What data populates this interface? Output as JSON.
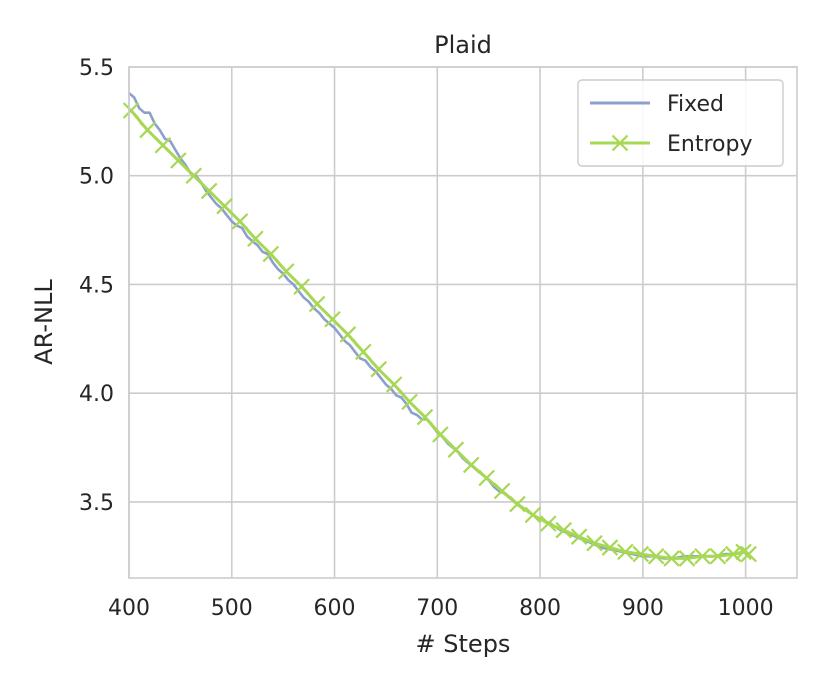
{
  "chart_data": {
    "type": "line",
    "title": "Plaid",
    "xlabel": "# Steps",
    "ylabel": "AR-NLL",
    "xlim": [
      400,
      1050
    ],
    "ylim": [
      3.15,
      5.5
    ],
    "xticks": [
      400,
      500,
      600,
      700,
      800,
      900,
      1000
    ],
    "yticks": [
      3.5,
      4.0,
      4.5,
      5.0,
      5.5
    ],
    "xtick_labels": [
      "400",
      "500",
      "600",
      "700",
      "800",
      "900",
      "1000"
    ],
    "ytick_labels": [
      "3.5",
      "4.0",
      "4.5",
      "5.0",
      "5.5"
    ],
    "grid": true,
    "legend_position": "top-right",
    "series": [
      {
        "name": "Fixed",
        "color": "#8da0cb",
        "marker": "none",
        "x": [
          400,
          405,
          410,
          415,
          420,
          425,
          430,
          435,
          440,
          445,
          450,
          455,
          460,
          465,
          470,
          475,
          480,
          485,
          490,
          495,
          500,
          505,
          510,
          515,
          520,
          525,
          530,
          535,
          540,
          545,
          550,
          555,
          560,
          565,
          570,
          575,
          580,
          585,
          590,
          595,
          600,
          605,
          610,
          615,
          620,
          625,
          630,
          635,
          640,
          645,
          650,
          655,
          660,
          665,
          670,
          675,
          680,
          685,
          690,
          695,
          700,
          705,
          710,
          715,
          720,
          725,
          730,
          735,
          740,
          745,
          750,
          755,
          760,
          765,
          770,
          775,
          780,
          790,
          800,
          810,
          820,
          830,
          840,
          850,
          860,
          870,
          880,
          890,
          900,
          910,
          920,
          930,
          940,
          950,
          960,
          970,
          980,
          990,
          1000
        ],
        "values": [
          5.38,
          5.36,
          5.31,
          5.29,
          5.29,
          5.24,
          5.21,
          5.17,
          5.16,
          5.12,
          5.08,
          5.05,
          5.01,
          5.0,
          4.97,
          4.93,
          4.9,
          4.87,
          4.85,
          4.82,
          4.79,
          4.77,
          4.76,
          4.72,
          4.7,
          4.68,
          4.65,
          4.64,
          4.6,
          4.57,
          4.55,
          4.52,
          4.5,
          4.47,
          4.44,
          4.42,
          4.39,
          4.37,
          4.34,
          4.32,
          4.3,
          4.27,
          4.24,
          4.22,
          4.19,
          4.16,
          4.15,
          4.12,
          4.1,
          4.07,
          4.04,
          4.02,
          3.99,
          3.98,
          3.95,
          3.91,
          3.9,
          3.88,
          3.88,
          3.85,
          3.82,
          3.8,
          3.77,
          3.75,
          3.73,
          3.7,
          3.68,
          3.66,
          3.64,
          3.62,
          3.6,
          3.57,
          3.55,
          3.54,
          3.52,
          3.5,
          3.48,
          3.45,
          3.42,
          3.4,
          3.37,
          3.35,
          3.33,
          3.31,
          3.29,
          3.28,
          3.27,
          3.26,
          3.25,
          3.25,
          3.24,
          3.24,
          3.25,
          3.25,
          3.25,
          3.25,
          3.26,
          3.26,
          3.27
        ]
      },
      {
        "name": "Entropy",
        "color": "#a6d854",
        "marker": "x",
        "x": [
          402,
          418,
          433,
          448,
          463,
          478,
          493,
          508,
          523,
          538,
          553,
          568,
          583,
          598,
          613,
          628,
          643,
          658,
          673,
          688,
          703,
          718,
          733,
          748,
          763,
          778,
          793,
          808,
          823,
          838,
          853,
          868,
          883,
          898,
          913,
          928,
          943,
          958,
          973,
          988,
          998,
          1003
        ],
        "values": [
          5.3,
          5.21,
          5.14,
          5.07,
          5.0,
          4.93,
          4.86,
          4.79,
          4.71,
          4.64,
          4.56,
          4.49,
          4.41,
          4.34,
          4.27,
          4.19,
          4.11,
          4.04,
          3.96,
          3.89,
          3.81,
          3.74,
          3.67,
          3.61,
          3.55,
          3.49,
          3.44,
          3.4,
          3.37,
          3.34,
          3.31,
          3.29,
          3.27,
          3.26,
          3.25,
          3.24,
          3.24,
          3.25,
          3.25,
          3.26,
          3.27,
          3.26
        ]
      }
    ]
  }
}
